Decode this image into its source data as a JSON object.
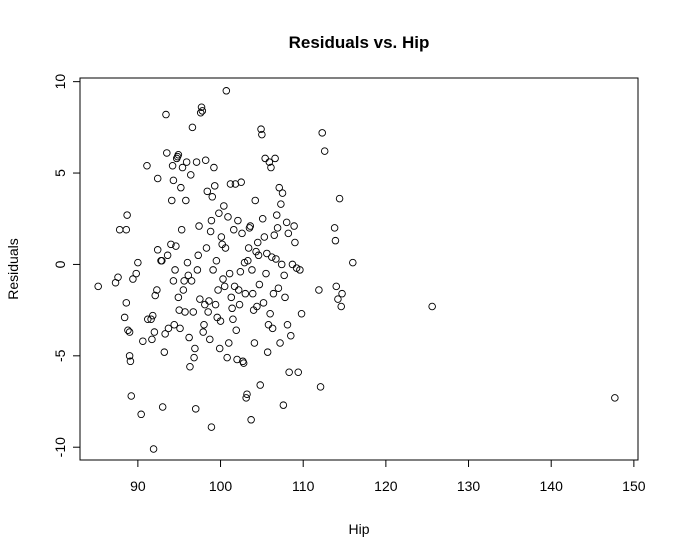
{
  "chart_data": {
    "type": "scatter",
    "title": "Residuals vs. Hip",
    "xlabel": "Hip",
    "ylabel": "Residuals",
    "xlim": [
      83,
      150.5
    ],
    "ylim": [
      -10.7,
      10.2
    ],
    "xticks": [
      90,
      100,
      110,
      120,
      130,
      140,
      150
    ],
    "yticks": [
      -10,
      -5,
      0,
      5,
      10
    ],
    "grid": false,
    "legend": "none",
    "marker": "open-circle",
    "points": [
      [
        85.2,
        -1.2
      ],
      [
        87.3,
        -1.0
      ],
      [
        87.6,
        -0.7
      ],
      [
        87.8,
        1.9
      ],
      [
        88.4,
        -2.9
      ],
      [
        88.6,
        1.9
      ],
      [
        88.6,
        -2.1
      ],
      [
        88.8,
        -3.6
      ],
      [
        88.7,
        2.7
      ],
      [
        89.0,
        -3.7
      ],
      [
        89.0,
        -5.0
      ],
      [
        89.1,
        -5.3
      ],
      [
        89.2,
        -7.2
      ],
      [
        89.4,
        -0.8
      ],
      [
        89.8,
        -0.5
      ],
      [
        90.0,
        0.1
      ],
      [
        90.4,
        -8.2
      ],
      [
        90.6,
        -4.2
      ],
      [
        91.1,
        5.4
      ],
      [
        91.2,
        -3.0
      ],
      [
        91.6,
        -3.0
      ],
      [
        91.7,
        -4.1
      ],
      [
        91.8,
        -2.8
      ],
      [
        91.9,
        -10.1
      ],
      [
        92.0,
        -3.7
      ],
      [
        92.1,
        -1.7
      ],
      [
        92.3,
        -1.4
      ],
      [
        92.4,
        4.7
      ],
      [
        92.4,
        0.8
      ],
      [
        92.8,
        0.2
      ],
      [
        92.9,
        0.2
      ],
      [
        93.0,
        -7.8
      ],
      [
        93.2,
        -4.8
      ],
      [
        93.3,
        -3.8
      ],
      [
        93.4,
        8.2
      ],
      [
        93.5,
        6.1
      ],
      [
        93.6,
        0.5
      ],
      [
        93.7,
        -3.5
      ],
      [
        94.0,
        1.1
      ],
      [
        94.1,
        3.5
      ],
      [
        94.2,
        5.4
      ],
      [
        94.3,
        4.6
      ],
      [
        94.3,
        -0.9
      ],
      [
        94.4,
        -3.3
      ],
      [
        94.5,
        -0.3
      ],
      [
        94.6,
        1.0
      ],
      [
        94.7,
        5.8
      ],
      [
        94.8,
        5.9
      ],
      [
        94.9,
        6.0
      ],
      [
        94.9,
        -1.8
      ],
      [
        95.0,
        -2.5
      ],
      [
        95.1,
        -3.5
      ],
      [
        95.2,
        4.2
      ],
      [
        95.3,
        1.9
      ],
      [
        95.4,
        5.3
      ],
      [
        95.5,
        -1.4
      ],
      [
        95.6,
        -0.9
      ],
      [
        95.7,
        -2.6
      ],
      [
        95.8,
        3.5
      ],
      [
        95.9,
        5.6
      ],
      [
        96.0,
        0.1
      ],
      [
        96.1,
        -0.6
      ],
      [
        96.2,
        -4.0
      ],
      [
        96.3,
        -5.6
      ],
      [
        96.4,
        4.9
      ],
      [
        96.5,
        -0.9
      ],
      [
        96.6,
        7.5
      ],
      [
        96.7,
        -2.6
      ],
      [
        96.8,
        -5.1
      ],
      [
        96.9,
        -4.6
      ],
      [
        97.0,
        -7.9
      ],
      [
        97.1,
        5.6
      ],
      [
        97.2,
        -0.3
      ],
      [
        97.3,
        0.5
      ],
      [
        97.4,
        2.1
      ],
      [
        97.5,
        -1.9
      ],
      [
        97.6,
        8.3
      ],
      [
        97.7,
        8.6
      ],
      [
        97.8,
        8.4
      ],
      [
        97.9,
        -3.7
      ],
      [
        98.0,
        -3.3
      ],
      [
        98.1,
        -2.2
      ],
      [
        98.2,
        5.7
      ],
      [
        98.3,
        0.9
      ],
      [
        98.4,
        4.0
      ],
      [
        98.5,
        -2.6
      ],
      [
        98.6,
        -2.0
      ],
      [
        98.7,
        -4.1
      ],
      [
        98.8,
        1.8
      ],
      [
        98.9,
        2.4
      ],
      [
        98.9,
        -8.9
      ],
      [
        99.0,
        3.7
      ],
      [
        99.1,
        -0.3
      ],
      [
        99.2,
        5.3
      ],
      [
        99.3,
        4.3
      ],
      [
        99.4,
        -2.2
      ],
      [
        99.5,
        0.2
      ],
      [
        99.6,
        -2.9
      ],
      [
        99.7,
        -1.4
      ],
      [
        99.8,
        2.8
      ],
      [
        99.9,
        -4.6
      ],
      [
        100.0,
        -3.1
      ],
      [
        100.1,
        1.5
      ],
      [
        100.2,
        1.1
      ],
      [
        100.3,
        -0.8
      ],
      [
        100.4,
        3.2
      ],
      [
        100.5,
        -1.2
      ],
      [
        100.6,
        0.9
      ],
      [
        100.7,
        9.5
      ],
      [
        100.8,
        -5.1
      ],
      [
        100.9,
        2.6
      ],
      [
        101.0,
        -4.3
      ],
      [
        101.1,
        -0.5
      ],
      [
        101.2,
        4.4
      ],
      [
        101.3,
        -1.8
      ],
      [
        101.4,
        -2.4
      ],
      [
        101.5,
        -3.0
      ],
      [
        101.6,
        1.9
      ],
      [
        101.7,
        -1.2
      ],
      [
        101.8,
        4.4
      ],
      [
        101.9,
        -3.6
      ],
      [
        102.0,
        -5.2
      ],
      [
        102.1,
        2.4
      ],
      [
        102.2,
        -1.4
      ],
      [
        102.3,
        -2.2
      ],
      [
        102.4,
        -0.4
      ],
      [
        102.5,
        4.5
      ],
      [
        102.6,
        1.7
      ],
      [
        102.7,
        -5.3
      ],
      [
        102.8,
        -5.4
      ],
      [
        102.9,
        0.1
      ],
      [
        103.0,
        -1.6
      ],
      [
        103.1,
        -7.3
      ],
      [
        103.2,
        -7.1
      ],
      [
        103.3,
        0.2
      ],
      [
        103.4,
        0.9
      ],
      [
        103.5,
        2.0
      ],
      [
        103.6,
        2.1
      ],
      [
        103.7,
        -8.5
      ],
      [
        103.8,
        -0.3
      ],
      [
        103.9,
        -1.6
      ],
      [
        104.0,
        -2.5
      ],
      [
        104.1,
        -4.3
      ],
      [
        104.2,
        3.5
      ],
      [
        104.3,
        0.7
      ],
      [
        104.4,
        -2.3
      ],
      [
        104.5,
        1.2
      ],
      [
        104.6,
        0.5
      ],
      [
        104.7,
        -1.1
      ],
      [
        104.8,
        -6.6
      ],
      [
        104.9,
        7.4
      ],
      [
        105.0,
        7.1
      ],
      [
        105.1,
        2.5
      ],
      [
        105.2,
        -2.1
      ],
      [
        105.3,
        1.5
      ],
      [
        105.4,
        5.8
      ],
      [
        105.5,
        -0.5
      ],
      [
        105.6,
        0.6
      ],
      [
        105.7,
        -4.8
      ],
      [
        105.8,
        -3.3
      ],
      [
        105.9,
        5.6
      ],
      [
        106.0,
        -2.7
      ],
      [
        106.1,
        5.3
      ],
      [
        106.2,
        0.4
      ],
      [
        106.3,
        -3.5
      ],
      [
        106.4,
        -1.6
      ],
      [
        106.5,
        1.6
      ],
      [
        106.6,
        5.8
      ],
      [
        106.7,
        0.3
      ],
      [
        106.8,
        2.7
      ],
      [
        106.9,
        2.0
      ],
      [
        107.0,
        -1.3
      ],
      [
        107.1,
        4.2
      ],
      [
        107.2,
        -4.3
      ],
      [
        107.3,
        3.3
      ],
      [
        107.4,
        0.0
      ],
      [
        107.5,
        3.9
      ],
      [
        107.6,
        -7.7
      ],
      [
        107.7,
        -0.6
      ],
      [
        107.8,
        -1.8
      ],
      [
        108.0,
        2.3
      ],
      [
        108.1,
        -3.3
      ],
      [
        108.2,
        1.7
      ],
      [
        108.3,
        -5.9
      ],
      [
        108.5,
        -3.9
      ],
      [
        108.7,
        0.0
      ],
      [
        108.9,
        2.1
      ],
      [
        109.0,
        1.2
      ],
      [
        109.2,
        -0.2
      ],
      [
        109.4,
        -5.9
      ],
      [
        109.6,
        -0.3
      ],
      [
        109.8,
        -2.7
      ],
      [
        111.9,
        -1.4
      ],
      [
        112.1,
        -6.7
      ],
      [
        112.3,
        7.2
      ],
      [
        112.6,
        6.2
      ],
      [
        113.8,
        2.0
      ],
      [
        113.9,
        1.3
      ],
      [
        114.0,
        -1.2
      ],
      [
        114.2,
        -1.9
      ],
      [
        114.4,
        3.6
      ],
      [
        114.6,
        -2.3
      ],
      [
        114.7,
        -1.6
      ],
      [
        116.0,
        0.1
      ],
      [
        125.6,
        -2.3
      ],
      [
        147.7,
        -7.3
      ]
    ]
  }
}
